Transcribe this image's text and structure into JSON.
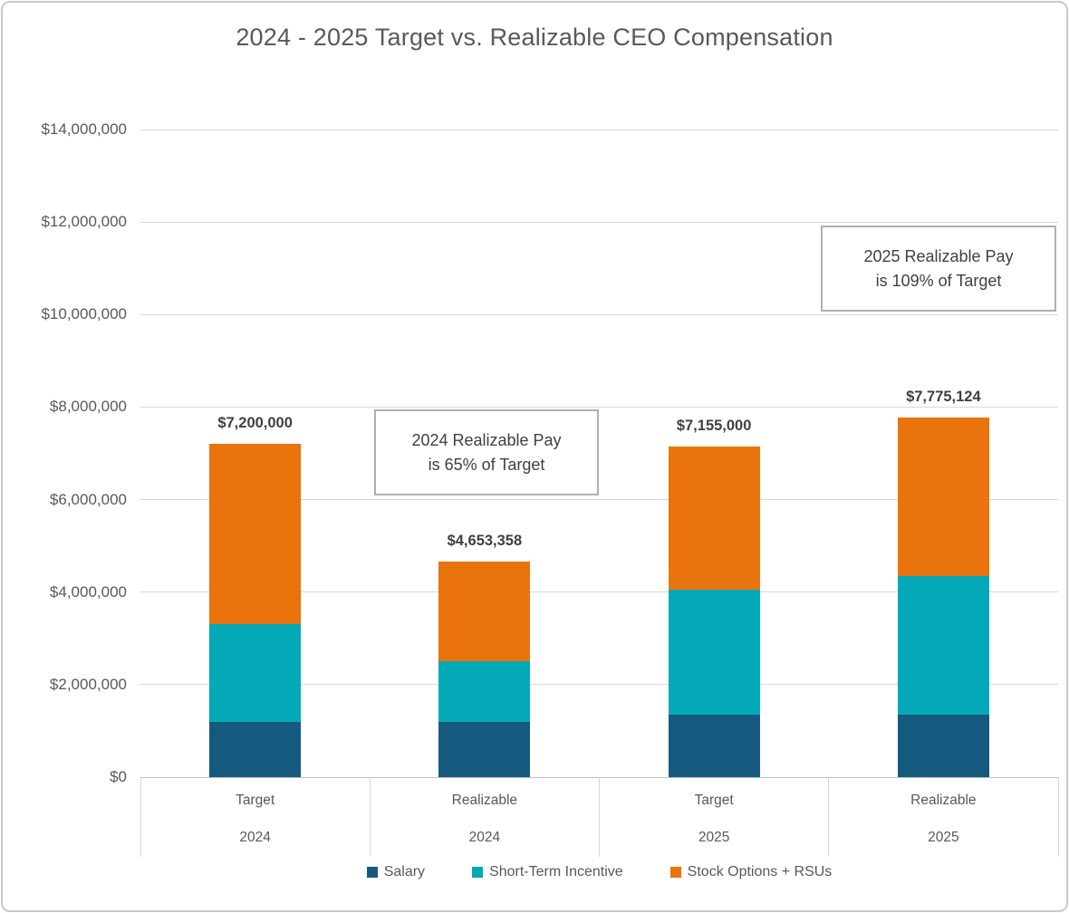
{
  "chart_data": {
    "type": "bar",
    "stacked": true,
    "title": "2024 - 2025 Target vs. Realizable CEO Compensation",
    "categories": [
      "Target",
      "Realizable",
      "Target",
      "Realizable"
    ],
    "category_years": [
      "2024",
      "2024",
      "2025",
      "2025"
    ],
    "series": [
      {
        "name": "Salary",
        "color": "#155A7E",
        "values": [
          1200000,
          1200000,
          1350000,
          1350000
        ]
      },
      {
        "name": "Short-Term Incentive",
        "color": "#04A9B8",
        "values": [
          2100000,
          1300000,
          2700000,
          3000000
        ]
      },
      {
        "name": "Stock Options + RSUs",
        "color": "#E9730D",
        "values": [
          3900000,
          2153358,
          3105000,
          3425124
        ]
      }
    ],
    "totals": [
      "$7,200,000",
      "$4,653,358",
      "$7,155,000",
      "$7,775,124"
    ],
    "total_values": [
      7200000,
      4653358,
      7155000,
      7775124
    ],
    "ylim": [
      0,
      14000000
    ],
    "ytick_step": 2000000,
    "ytick_labels": [
      "$0",
      "$2,000,000",
      "$4,000,000",
      "$6,000,000",
      "$8,000,000",
      "$10,000,000",
      "$12,000,000",
      "$14,000,000"
    ],
    "grid": true,
    "legend_position": "bottom",
    "annotations": [
      {
        "line1": "2024 Realizable Pay",
        "line2": "is 65% of Target"
      },
      {
        "line1": "2025 Realizable Pay",
        "line2": "is 109% of Target"
      }
    ]
  },
  "colors": {
    "title_text": "#595959",
    "axis_text": "#595959",
    "value_label_text": "#404040",
    "gridline": "#d9d9d9",
    "axis_line": "#bfbfbf",
    "annotation_border": "#b0b0b0",
    "page_border": "#c9c9c9"
  }
}
